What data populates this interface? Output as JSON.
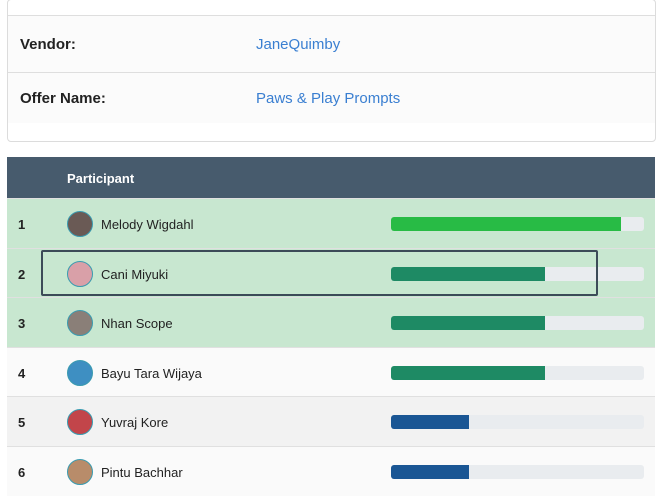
{
  "details": {
    "rows": [
      {
        "label": "Vendor:",
        "value": "JaneQuimby"
      },
      {
        "label": "Offer Name:",
        "value": "Paws & Play Prompts"
      }
    ]
  },
  "table": {
    "header": "Participant",
    "rows": [
      {
        "rank": "1",
        "name": "Melody Wigdahl",
        "progress": 91,
        "color": "#28bb45"
      },
      {
        "rank": "2",
        "name": "Cani Miyuki",
        "progress": 61,
        "color": "#1e8a64"
      },
      {
        "rank": "3",
        "name": "Nhan Scope",
        "progress": 61,
        "color": "#1e8a64"
      },
      {
        "rank": "4",
        "name": "Bayu Tara Wijaya",
        "progress": 61,
        "color": "#1e8a64"
      },
      {
        "rank": "5",
        "name": "Yuvraj Kore",
        "progress": 31,
        "color": "#1a5694"
      },
      {
        "rank": "6",
        "name": "Pintu Bachhar",
        "progress": 31,
        "color": "#1a5694"
      }
    ]
  }
}
